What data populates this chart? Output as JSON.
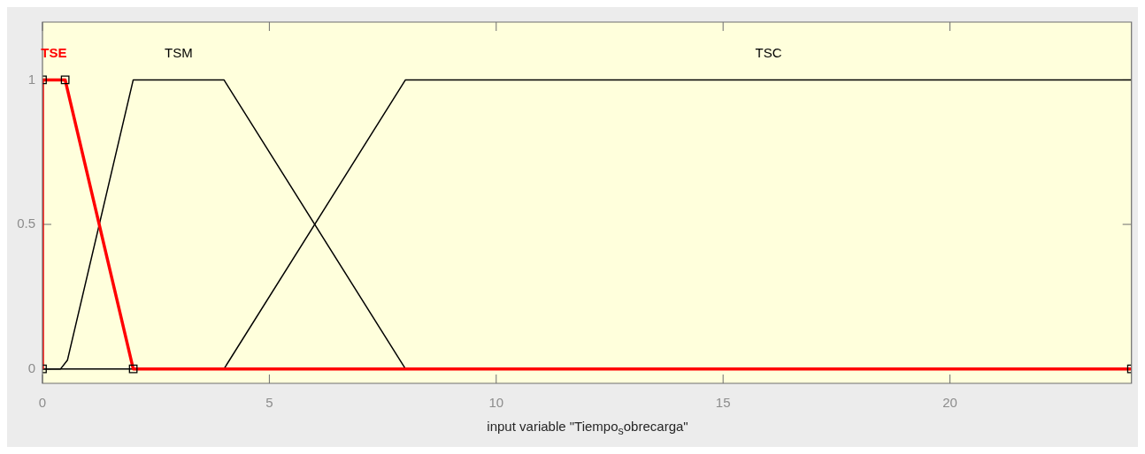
{
  "chart_data": {
    "type": "line",
    "xlabel": "input variable \"Tiempo$_{s}$obrecarga\"",
    "xlim": [
      0,
      24
    ],
    "ylim": [
      -0.05,
      1.2
    ],
    "xticks": [
      0,
      5,
      10,
      15,
      20
    ],
    "yticks": [
      0,
      0.5,
      1
    ],
    "grid": false,
    "legend": false,
    "series": [
      {
        "name": "TSE",
        "color": "#ff0000",
        "marker": "square",
        "x": [
          0,
          0,
          0.5,
          2,
          24
        ],
        "values": [
          0,
          1,
          1,
          0,
          0
        ]
      },
      {
        "name": "TSM",
        "color": "#000000",
        "marker": "none",
        "x": [
          0,
          0.4,
          0.55,
          2,
          4,
          8,
          24
        ],
        "values": [
          0,
          0,
          0.03,
          1,
          1,
          0,
          0
        ]
      },
      {
        "name": "TSC",
        "color": "#000000",
        "marker": "none",
        "x": [
          0,
          4,
          8,
          24
        ],
        "values": [
          0,
          0,
          1,
          1
        ]
      }
    ]
  }
}
